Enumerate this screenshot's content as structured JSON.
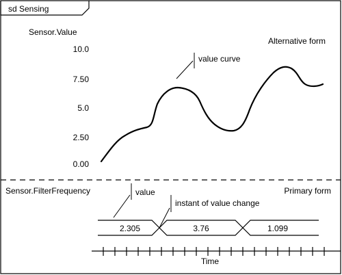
{
  "frame": {
    "title": "sd Sensing"
  },
  "top_lifeline": {
    "name": "Sensor.Value",
    "form_label": "Alternative form",
    "y_ticks": [
      "10.0",
      "7.50",
      "5.0",
      "2.50",
      "0.00"
    ],
    "annotation": "value curve"
  },
  "bottom_lifeline": {
    "name": "Sensor.FilterFrequency",
    "form_label": "Primary form",
    "values": [
      "2.305",
      "3.76",
      "1.099"
    ],
    "annotation_value": "value",
    "annotation_change": "instant of value change"
  },
  "time_axis": {
    "label": "Time"
  },
  "colors": {
    "line": "#000000",
    "background": "#ffffff"
  }
}
